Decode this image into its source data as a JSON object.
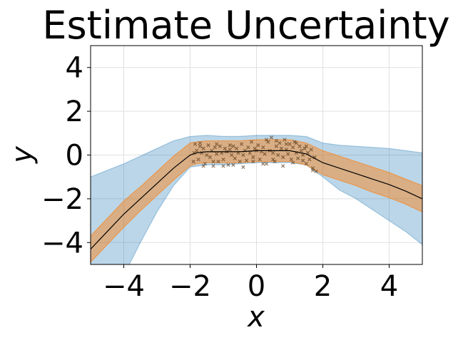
{
  "chart_data": {
    "type": "line",
    "title": "Estimate Uncertainty",
    "xlabel": "x",
    "ylabel": "y",
    "xlim": [
      -5,
      5
    ],
    "ylim": [
      -5,
      5
    ],
    "xticks": [
      -4,
      -2,
      0,
      2,
      4
    ],
    "yticks": [
      -4,
      -2,
      0,
      2,
      4
    ],
    "xtick_labels": [
      "−4",
      "−2",
      "0",
      "2",
      "4"
    ],
    "ytick_labels": [
      "−4",
      "−2",
      "0",
      "2",
      "4"
    ],
    "grid": true,
    "colors": {
      "outer_band": "#1f77b4",
      "inner_band": "#ff7f0e",
      "mean_line": "#000000",
      "points": "#5a3a1a"
    },
    "mean": {
      "x": [
        -5,
        -4.5,
        -4,
        -3.5,
        -3,
        -2.5,
        -2,
        -1.8,
        -1.5,
        -1,
        -0.5,
        0,
        0.5,
        1,
        1.5,
        2,
        2.5,
        3,
        3.5,
        4,
        4.5,
        5
      ],
      "y": [
        -4.3,
        -3.5,
        -2.7,
        -2.0,
        -1.3,
        -0.6,
        0.0,
        0.1,
        0.15,
        0.15,
        0.15,
        0.2,
        0.2,
        0.2,
        0.05,
        -0.35,
        -0.6,
        -0.85,
        -1.1,
        -1.35,
        -1.65,
        -2.0
      ]
    },
    "inner_band": {
      "x": [
        -5,
        -4.5,
        -4,
        -3.5,
        -3,
        -2.5,
        -2,
        -1.8,
        -1.5,
        -1,
        -0.5,
        0,
        0.5,
        1,
        1.5,
        2,
        2.5,
        3,
        3.5,
        4,
        4.5,
        5
      ],
      "lower": [
        -4.9,
        -4.1,
        -3.3,
        -2.55,
        -1.85,
        -1.15,
        -0.5,
        -0.4,
        -0.35,
        -0.35,
        -0.35,
        -0.3,
        -0.3,
        -0.3,
        -0.45,
        -0.9,
        -1.15,
        -1.4,
        -1.7,
        -1.95,
        -2.25,
        -2.6
      ],
      "upper": [
        -3.7,
        -2.9,
        -2.1,
        -1.45,
        -0.75,
        -0.05,
        0.55,
        0.6,
        0.65,
        0.65,
        0.65,
        0.7,
        0.7,
        0.7,
        0.55,
        0.2,
        -0.05,
        -0.3,
        -0.55,
        -0.8,
        -1.1,
        -1.4
      ]
    },
    "outer_band": {
      "x": [
        -5,
        -4.5,
        -4,
        -3.5,
        -3,
        -2.5,
        -2,
        -1.5,
        -1,
        -0.5,
        0,
        0.5,
        1,
        1.5,
        2,
        2.5,
        3,
        3.5,
        4,
        4.5,
        5
      ],
      "lower": [
        -9,
        -7.2,
        -5.5,
        -4.0,
        -2.6,
        -1.4,
        -0.55,
        -0.45,
        -0.45,
        -0.4,
        -0.35,
        -0.35,
        -0.35,
        -0.45,
        -1.0,
        -1.6,
        -2.0,
        -2.5,
        -3.0,
        -3.5,
        -4.1
      ],
      "upper": [
        -1.0,
        -0.7,
        -0.4,
        -0.05,
        0.3,
        0.65,
        0.85,
        0.9,
        0.85,
        0.85,
        0.9,
        0.9,
        0.9,
        0.85,
        0.55,
        0.45,
        0.4,
        0.35,
        0.3,
        0.2,
        0.1
      ]
    },
    "points": {
      "x": [
        -1.9,
        -1.85,
        -1.8,
        -1.75,
        -1.7,
        -1.65,
        -1.6,
        -1.55,
        -1.5,
        -1.45,
        -1.4,
        -1.35,
        -1.3,
        -1.25,
        -1.2,
        -1.15,
        -1.1,
        -1.05,
        -1.0,
        -0.95,
        -0.9,
        -0.85,
        -0.8,
        -0.75,
        -0.7,
        -0.65,
        -0.6,
        -0.55,
        -0.5,
        -0.45,
        -0.4,
        -0.35,
        -0.3,
        -0.25,
        -0.2,
        -0.15,
        -0.1,
        -0.05,
        0.0,
        0.05,
        0.1,
        0.15,
        0.2,
        0.25,
        0.3,
        0.35,
        0.4,
        0.45,
        0.5,
        0.55,
        0.6,
        0.65,
        0.7,
        0.75,
        0.8,
        0.85,
        0.9,
        0.95,
        1.0,
        1.05,
        1.1,
        1.15,
        1.2,
        1.25,
        1.3,
        1.35,
        1.4,
        1.45,
        1.5,
        1.55,
        1.6,
        1.65,
        1.7,
        1.75,
        1.8,
        -1.88,
        -1.6,
        -1.3,
        -1.0,
        -0.7,
        -0.4,
        -0.1,
        0.2,
        0.5,
        0.8,
        1.1,
        1.4,
        1.7,
        -1.7,
        -1.2,
        -0.8,
        0.3,
        0.6,
        0.9,
        1.2,
        1.5
      ],
      "y": [
        -0.3,
        0.5,
        0.2,
        -0.2,
        0.4,
        0.1,
        0.3,
        -0.4,
        0.0,
        0.45,
        -0.1,
        0.2,
        -0.5,
        0.35,
        0.05,
        -0.3,
        0.4,
        0.1,
        -0.2,
        0.3,
        0.15,
        -0.45,
        0.25,
        0.0,
        0.4,
        -0.15,
        0.3,
        0.1,
        -0.3,
        0.5,
        0.0,
        0.2,
        -0.25,
        0.35,
        0.1,
        0.6,
        -0.1,
        0.3,
        0.2,
        0.45,
        -0.2,
        0.15,
        0.35,
        0.05,
        -0.4,
        0.6,
        0.2,
        0.8,
        0.1,
        -0.3,
        0.4,
        0.0,
        0.55,
        0.3,
        -0.1,
        0.7,
        0.25,
        0.05,
        0.5,
        -0.2,
        0.35,
        0.6,
        0.1,
        -0.15,
        0.4,
        0.2,
        0.0,
        0.3,
        -0.4,
        0.1,
        -0.2,
        0.25,
        -0.7,
        -0.1,
        -0.75,
        0.1,
        -0.5,
        -0.3,
        -0.5,
        -0.45,
        -0.55,
        -0.3,
        -0.4,
        -0.2,
        -0.5,
        -0.35,
        -0.25,
        -0.6,
        0.55,
        0.5,
        0.45,
        0.7,
        0.65,
        0.5,
        0.55,
        0.4
      ]
    }
  }
}
